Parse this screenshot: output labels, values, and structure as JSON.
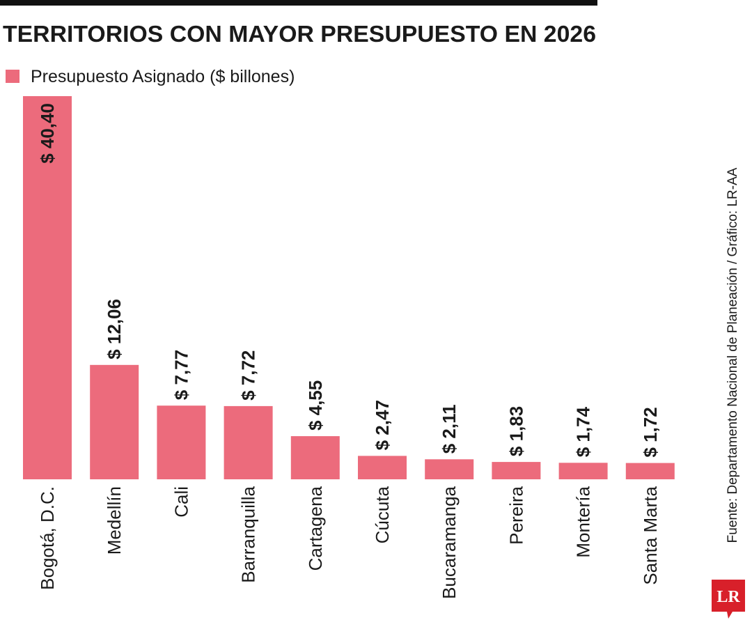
{
  "chart_data": {
    "type": "bar",
    "title": "TERRITORIOS CON MAYOR PRESUPUESTO EN 2026",
    "categories": [
      "Bogotá, D.C.",
      "Medellín",
      "Cali",
      "Barranquilla",
      "Cartagena",
      "Cúcuta",
      "Bucaramanga",
      "Pereira",
      "Montería",
      "Santa Marta"
    ],
    "series": [
      {
        "name": "Presupuesto Asignado ($ billones)",
        "color": "#ec6b7c",
        "values": [
          40.4,
          12.06,
          7.77,
          7.72,
          4.55,
          2.47,
          2.11,
          1.83,
          1.74,
          1.72
        ],
        "value_labels": [
          "$ 40,40",
          "$ 12,06",
          "$ 7,77",
          "$ 7,72",
          "$ 4,55",
          "$ 2,47",
          "$ 2,11",
          "$ 1,83",
          "$ 1,74",
          "$ 1,72"
        ]
      }
    ],
    "source": "Fuente: Departamento Nacional de Planeación / Gráfico: LR-AA",
    "logo": "LR"
  }
}
